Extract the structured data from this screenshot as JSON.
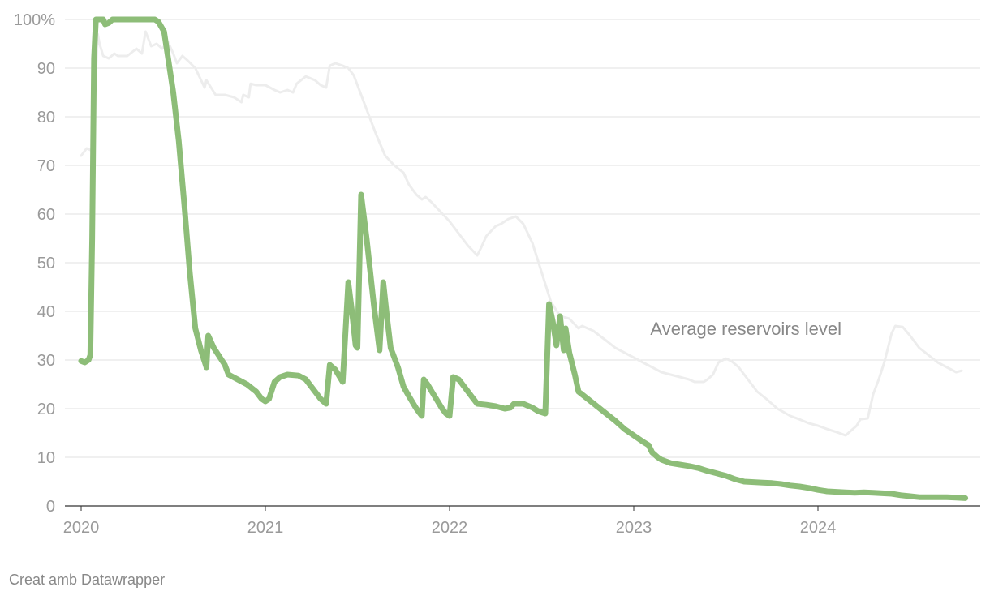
{
  "chart_data": {
    "type": "line",
    "title": "",
    "xlabel": "",
    "ylabel": "",
    "ylim": [
      0,
      100
    ],
    "xlim": [
      2020.0,
      2024.8
    ],
    "y_ticks": [
      0,
      10,
      20,
      30,
      40,
      50,
      60,
      70,
      80,
      90,
      100
    ],
    "y_tick_labels": [
      "0",
      "10",
      "20",
      "30",
      "40",
      "50",
      "60",
      "70",
      "80",
      "90",
      "100%"
    ],
    "x_ticks": [
      2020,
      2021,
      2022,
      2023,
      2024
    ],
    "x_tick_labels": [
      "2020",
      "2021",
      "2022",
      "2023",
      "2024"
    ],
    "grid": true,
    "series": [
      {
        "key": "average",
        "name": "Average reservoirs level",
        "color": "#ededed",
        "points": [
          [
            2020.0,
            72
          ],
          [
            2020.03,
            73.5
          ],
          [
            2020.06,
            73
          ],
          [
            2020.08,
            89
          ],
          [
            2020.09,
            97
          ],
          [
            2020.1,
            95
          ],
          [
            2020.12,
            92.5
          ],
          [
            2020.15,
            92
          ],
          [
            2020.18,
            93
          ],
          [
            2020.2,
            92.5
          ],
          [
            2020.25,
            92.5
          ],
          [
            2020.3,
            94
          ],
          [
            2020.33,
            93
          ],
          [
            2020.35,
            97.5
          ],
          [
            2020.38,
            94.5
          ],
          [
            2020.41,
            95
          ],
          [
            2020.44,
            94
          ],
          [
            2020.47,
            95.5
          ],
          [
            2020.5,
            93
          ],
          [
            2020.52,
            91
          ],
          [
            2020.55,
            92.5
          ],
          [
            2020.58,
            91.5
          ],
          [
            2020.62,
            90
          ],
          [
            2020.67,
            86
          ],
          [
            2020.68,
            87.5
          ],
          [
            2020.73,
            84.5
          ],
          [
            2020.78,
            84.5
          ],
          [
            2020.83,
            84
          ],
          [
            2020.87,
            83
          ],
          [
            2020.88,
            84.5
          ],
          [
            2020.91,
            84
          ],
          [
            2020.92,
            86.8
          ],
          [
            2020.95,
            86.5
          ],
          [
            2021.0,
            86.5
          ],
          [
            2021.05,
            85.5
          ],
          [
            2021.08,
            85
          ],
          [
            2021.12,
            85.5
          ],
          [
            2021.15,
            85
          ],
          [
            2021.17,
            86.8
          ],
          [
            2021.22,
            88.3
          ],
          [
            2021.27,
            87.5
          ],
          [
            2021.3,
            86.5
          ],
          [
            2021.33,
            86
          ],
          [
            2021.35,
            90.5
          ],
          [
            2021.38,
            91
          ],
          [
            2021.42,
            90.5
          ],
          [
            2021.45,
            90
          ],
          [
            2021.48,
            88.5
          ],
          [
            2021.5,
            86.5
          ],
          [
            2021.55,
            81.5
          ],
          [
            2021.6,
            76.5
          ],
          [
            2021.65,
            72
          ],
          [
            2021.7,
            70
          ],
          [
            2021.75,
            68.5
          ],
          [
            2021.78,
            66
          ],
          [
            2021.82,
            64
          ],
          [
            2021.85,
            63
          ],
          [
            2021.87,
            63.5
          ],
          [
            2021.9,
            62.5
          ],
          [
            2021.95,
            60.5
          ],
          [
            2022.0,
            58.5
          ],
          [
            2022.05,
            56
          ],
          [
            2022.1,
            53.5
          ],
          [
            2022.15,
            51.5
          ],
          [
            2022.17,
            53
          ],
          [
            2022.2,
            55.5
          ],
          [
            2022.25,
            57.5
          ],
          [
            2022.28,
            58
          ],
          [
            2022.32,
            59
          ],
          [
            2022.36,
            59.5
          ],
          [
            2022.4,
            58
          ],
          [
            2022.45,
            54
          ],
          [
            2022.5,
            48
          ],
          [
            2022.55,
            42
          ],
          [
            2022.6,
            39
          ],
          [
            2022.65,
            38.5
          ],
          [
            2022.7,
            36.5
          ],
          [
            2022.72,
            37
          ],
          [
            2022.78,
            36
          ],
          [
            2022.85,
            34
          ],
          [
            2022.9,
            32.5
          ],
          [
            2022.95,
            31.5
          ],
          [
            2023.0,
            30.5
          ],
          [
            2023.05,
            29.5
          ],
          [
            2023.1,
            28.5
          ],
          [
            2023.15,
            27.5
          ],
          [
            2023.2,
            27
          ],
          [
            2023.25,
            26.5
          ],
          [
            2023.3,
            26
          ],
          [
            2023.33,
            25.5
          ],
          [
            2023.38,
            25.5
          ],
          [
            2023.4,
            26
          ],
          [
            2023.43,
            27
          ],
          [
            2023.46,
            29.5
          ],
          [
            2023.5,
            30.3
          ],
          [
            2023.53,
            29.8
          ],
          [
            2023.57,
            28.5
          ],
          [
            2023.62,
            26
          ],
          [
            2023.67,
            23.5
          ],
          [
            2023.72,
            22
          ],
          [
            2023.78,
            20
          ],
          [
            2023.85,
            18.5
          ],
          [
            2023.9,
            17.8
          ],
          [
            2023.95,
            17
          ],
          [
            2024.0,
            16.5
          ],
          [
            2024.05,
            15.8
          ],
          [
            2024.1,
            15.2
          ],
          [
            2024.15,
            14.5
          ],
          [
            2024.18,
            15.5
          ],
          [
            2024.21,
            16.5
          ],
          [
            2024.23,
            17.8
          ],
          [
            2024.27,
            18
          ],
          [
            2024.3,
            23
          ],
          [
            2024.33,
            26
          ],
          [
            2024.36,
            29.5
          ],
          [
            2024.38,
            32.5
          ],
          [
            2024.4,
            35.5
          ],
          [
            2024.42,
            37
          ],
          [
            2024.46,
            36.8
          ],
          [
            2024.5,
            35
          ],
          [
            2024.55,
            32.5
          ],
          [
            2024.6,
            31
          ],
          [
            2024.65,
            29.5
          ],
          [
            2024.7,
            28.5
          ],
          [
            2024.75,
            27.5
          ],
          [
            2024.78,
            27.8
          ]
        ]
      },
      {
        "key": "highlight",
        "name": "",
        "color": "#8dbd78",
        "points": [
          [
            2020.0,
            29.8
          ],
          [
            2020.02,
            29.5
          ],
          [
            2020.04,
            30
          ],
          [
            2020.05,
            31
          ],
          [
            2020.06,
            55
          ],
          [
            2020.07,
            92
          ],
          [
            2020.08,
            100
          ],
          [
            2020.12,
            100
          ],
          [
            2020.13,
            99
          ],
          [
            2020.15,
            99.3
          ],
          [
            2020.17,
            100
          ],
          [
            2020.2,
            100
          ],
          [
            2020.3,
            100
          ],
          [
            2020.4,
            100
          ],
          [
            2020.42,
            99.5
          ],
          [
            2020.45,
            97.5
          ],
          [
            2020.48,
            90
          ],
          [
            2020.5,
            85
          ],
          [
            2020.53,
            75
          ],
          [
            2020.56,
            62
          ],
          [
            2020.59,
            48
          ],
          [
            2020.62,
            36.5
          ],
          [
            2020.65,
            32
          ],
          [
            2020.68,
            28.5
          ],
          [
            2020.69,
            35
          ],
          [
            2020.72,
            32.5
          ],
          [
            2020.78,
            29
          ],
          [
            2020.8,
            27
          ],
          [
            2020.85,
            26
          ],
          [
            2020.9,
            25
          ],
          [
            2020.95,
            23.5
          ],
          [
            2020.98,
            22
          ],
          [
            2021.0,
            21.5
          ],
          [
            2021.02,
            22
          ],
          [
            2021.05,
            25.5
          ],
          [
            2021.08,
            26.5
          ],
          [
            2021.12,
            27
          ],
          [
            2021.18,
            26.8
          ],
          [
            2021.22,
            26
          ],
          [
            2021.26,
            24
          ],
          [
            2021.3,
            22
          ],
          [
            2021.33,
            21
          ],
          [
            2021.35,
            29
          ],
          [
            2021.38,
            28
          ],
          [
            2021.42,
            25.5
          ],
          [
            2021.45,
            46
          ],
          [
            2021.47,
            40
          ],
          [
            2021.49,
            33
          ],
          [
            2021.5,
            32.5
          ],
          [
            2021.52,
            64
          ],
          [
            2021.55,
            55
          ],
          [
            2021.59,
            41
          ],
          [
            2021.62,
            32
          ],
          [
            2021.64,
            46
          ],
          [
            2021.66,
            39
          ],
          [
            2021.68,
            32.5
          ],
          [
            2021.72,
            28.5
          ],
          [
            2021.75,
            24.5
          ],
          [
            2021.78,
            22.5
          ],
          [
            2021.82,
            20
          ],
          [
            2021.85,
            18.5
          ],
          [
            2021.86,
            26
          ],
          [
            2021.88,
            25
          ],
          [
            2021.92,
            22.5
          ],
          [
            2021.96,
            20
          ],
          [
            2021.98,
            19
          ],
          [
            2022.0,
            18.5
          ],
          [
            2022.02,
            26.5
          ],
          [
            2022.05,
            26
          ],
          [
            2022.08,
            24.5
          ],
          [
            2022.12,
            22.5
          ],
          [
            2022.15,
            21
          ],
          [
            2022.2,
            20.8
          ],
          [
            2022.25,
            20.5
          ],
          [
            2022.3,
            20
          ],
          [
            2022.33,
            20.2
          ],
          [
            2022.35,
            21
          ],
          [
            2022.4,
            21
          ],
          [
            2022.45,
            20.2
          ],
          [
            2022.48,
            19.5
          ],
          [
            2022.52,
            19
          ],
          [
            2022.54,
            41.5
          ],
          [
            2022.56,
            38
          ],
          [
            2022.58,
            33
          ],
          [
            2022.6,
            39
          ],
          [
            2022.62,
            32
          ],
          [
            2022.63,
            36.5
          ],
          [
            2022.65,
            31.5
          ],
          [
            2022.68,
            27
          ],
          [
            2022.7,
            23.5
          ],
          [
            2022.75,
            22
          ],
          [
            2022.8,
            20.5
          ],
          [
            2022.85,
            19
          ],
          [
            2022.9,
            17.5
          ],
          [
            2022.95,
            15.8
          ],
          [
            2023.0,
            14.5
          ],
          [
            2023.05,
            13.2
          ],
          [
            2023.08,
            12.5
          ],
          [
            2023.1,
            11
          ],
          [
            2023.13,
            10
          ],
          [
            2023.15,
            9.5
          ],
          [
            2023.2,
            8.8
          ],
          [
            2023.25,
            8.5
          ],
          [
            2023.3,
            8.2
          ],
          [
            2023.35,
            7.8
          ],
          [
            2023.4,
            7.2
          ],
          [
            2023.45,
            6.7
          ],
          [
            2023.5,
            6.2
          ],
          [
            2023.55,
            5.5
          ],
          [
            2023.6,
            5
          ],
          [
            2023.65,
            4.9
          ],
          [
            2023.7,
            4.8
          ],
          [
            2023.75,
            4.7
          ],
          [
            2023.8,
            4.5
          ],
          [
            2023.85,
            4.2
          ],
          [
            2023.9,
            4
          ],
          [
            2023.95,
            3.7
          ],
          [
            2024.0,
            3.3
          ],
          [
            2024.05,
            3
          ],
          [
            2024.1,
            2.9
          ],
          [
            2024.15,
            2.8
          ],
          [
            2024.2,
            2.7
          ],
          [
            2024.25,
            2.8
          ],
          [
            2024.3,
            2.7
          ],
          [
            2024.35,
            2.6
          ],
          [
            2024.4,
            2.5
          ],
          [
            2024.45,
            2.2
          ],
          [
            2024.5,
            2
          ],
          [
            2024.55,
            1.8
          ],
          [
            2024.6,
            1.8
          ],
          [
            2024.65,
            1.8
          ],
          [
            2024.7,
            1.8
          ],
          [
            2024.75,
            1.7
          ],
          [
            2024.8,
            1.6
          ]
        ]
      }
    ],
    "annotations": [
      {
        "text": "Average reservoirs level",
        "x": 2023.09,
        "y": 34
      }
    ]
  },
  "credit": "Creat amb Datawrapper"
}
